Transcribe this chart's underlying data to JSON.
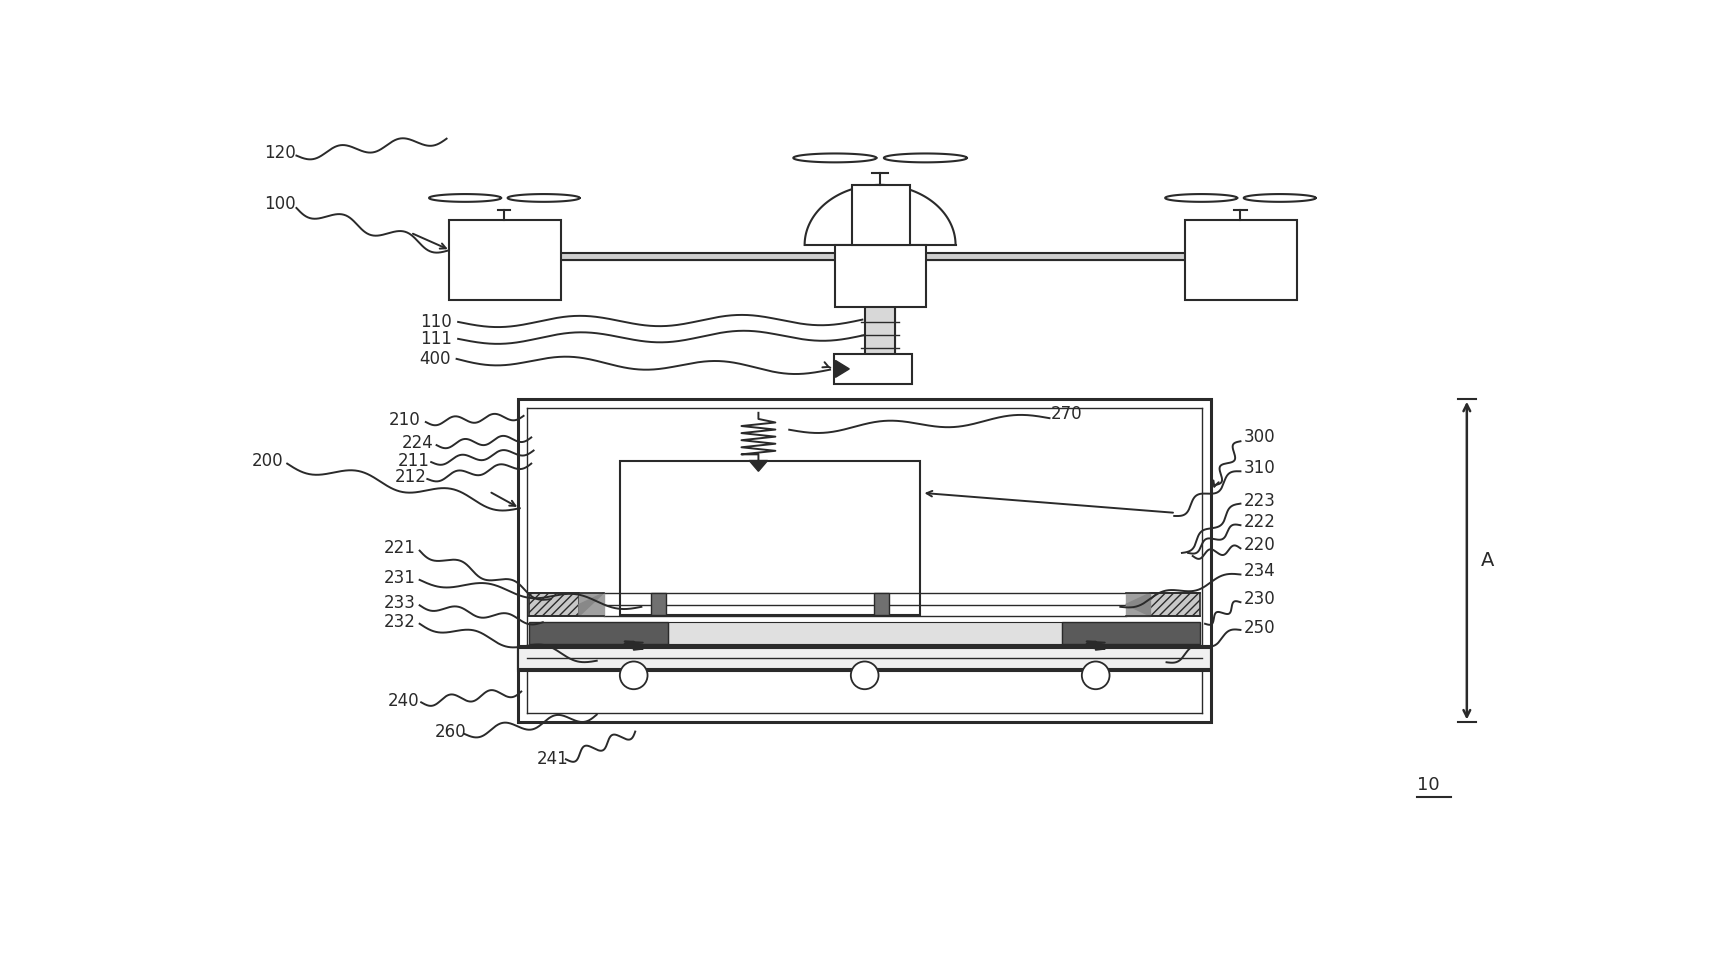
{
  "bg_color": "#ffffff",
  "lc": "#2a2a2a",
  "figsize": [
    17.21,
    9.63
  ],
  "dpi": 100,
  "fontsize": 12
}
